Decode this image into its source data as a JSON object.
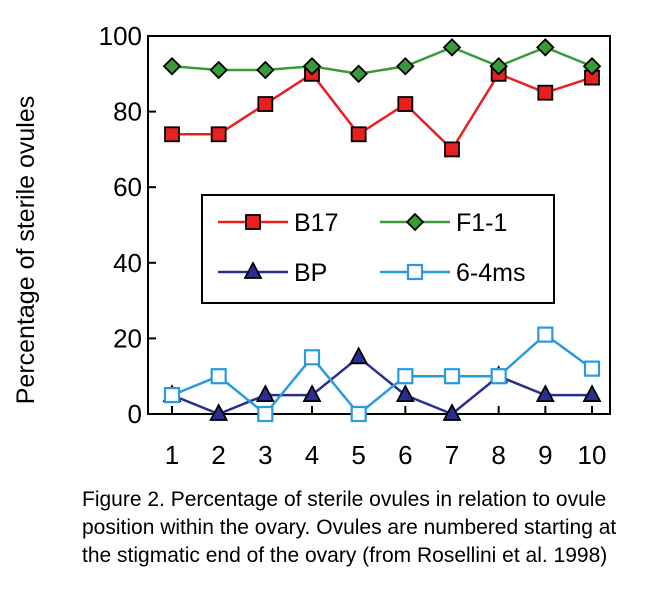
{
  "chart_data": {
    "type": "line",
    "title": "",
    "xlabel": "",
    "ylabel": "Percentage of sterile ovules",
    "x": [
      1,
      2,
      3,
      4,
      5,
      6,
      7,
      8,
      9,
      10
    ],
    "xticks": [
      "1",
      "2",
      "3",
      "4",
      "5",
      "6",
      "7",
      "8",
      "9",
      "10"
    ],
    "yticks": [
      "0",
      "20",
      "40",
      "60",
      "80",
      "100"
    ],
    "ylim": [
      0,
      100
    ],
    "grid": false,
    "legend_position": "center",
    "series": [
      {
        "name": "B17",
        "color": "#e8201e",
        "marker": "filled-square",
        "values": [
          74,
          74,
          82,
          90,
          74,
          82,
          70,
          90,
          85,
          89
        ]
      },
      {
        "name": "F1-1",
        "color": "#3a9a3a",
        "marker": "filled-diamond",
        "values": [
          92,
          91,
          91,
          92,
          90,
          92,
          97,
          92,
          97,
          92
        ]
      },
      {
        "name": "BP",
        "color": "#2a2f8f",
        "marker": "filled-triangle",
        "values": [
          5,
          0,
          5,
          5,
          15,
          5,
          0,
          10,
          5,
          5
        ]
      },
      {
        "name": "6-4ms",
        "color": "#2a9ae0",
        "marker": "open-square",
        "values": [
          5,
          10,
          0,
          15,
          0,
          10,
          10,
          10,
          21,
          12
        ]
      }
    ]
  },
  "caption": "Figure 2. Percentage of sterile ovules in relation to ovule position within the ovary. Ovules are numbered starting at the stigmatic end of the ovary (from Rosellini et al. 1998)"
}
